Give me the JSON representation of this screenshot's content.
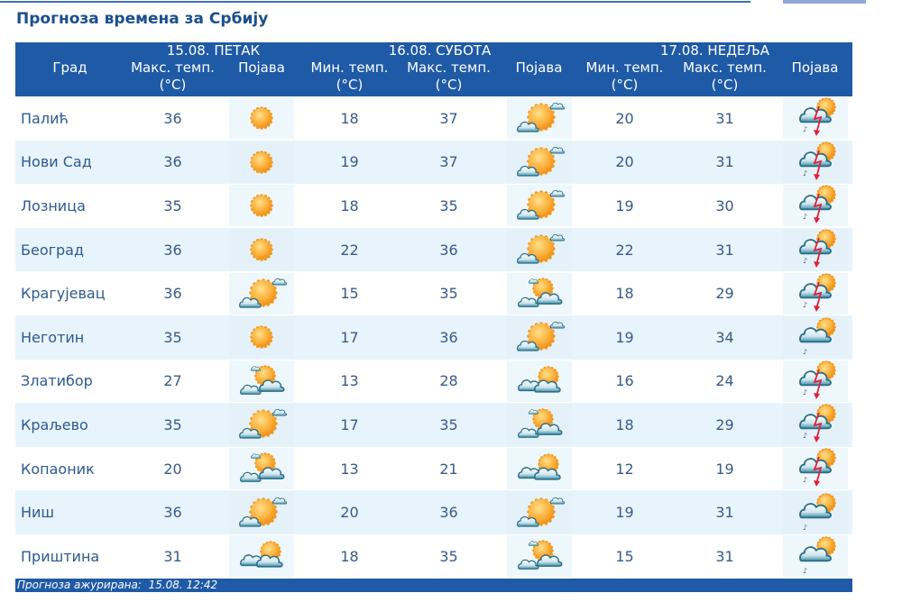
{
  "page": {
    "title": "Прогноза времена за Србију"
  },
  "header": {
    "city_label": "Град",
    "days": [
      {
        "label": "15.08. ПЕТАК"
      },
      {
        "label": "16.08. СУБОТА"
      },
      {
        "label": "17.08. НЕДЕЉА"
      }
    ],
    "max_temp_label": "Макс. темп.",
    "min_temp_label": "Мин. темп.",
    "unit_label": "(°C)",
    "phenomenon_label": "Појава"
  },
  "icons": {
    "sunny": "sunny-icon",
    "mostly_sunny": "sun-with-small-cloud-icon",
    "partly_cloudy": "partly-cloudy-icon",
    "cloudy_sun": "clouds-with-sun-icon",
    "showers": "cloud-sun-rain-icon",
    "thunderstorm": "cloud-sun-thunderstorm-icon"
  },
  "rows": [
    {
      "city": "Палић",
      "d1_max": "36",
      "d1_icon": "sunny",
      "d2_min": "18",
      "d2_max": "37",
      "d2_icon": "mostly_sunny",
      "d3_min": "20",
      "d3_max": "31",
      "d3_icon": "thunderstorm"
    },
    {
      "city": "Нови Сад",
      "d1_max": "36",
      "d1_icon": "sunny",
      "d2_min": "19",
      "d2_max": "37",
      "d2_icon": "mostly_sunny",
      "d3_min": "20",
      "d3_max": "31",
      "d3_icon": "thunderstorm"
    },
    {
      "city": "Лозница",
      "d1_max": "35",
      "d1_icon": "sunny",
      "d2_min": "18",
      "d2_max": "35",
      "d2_icon": "mostly_sunny",
      "d3_min": "19",
      "d3_max": "30",
      "d3_icon": "thunderstorm"
    },
    {
      "city": "Београд",
      "d1_max": "36",
      "d1_icon": "sunny",
      "d2_min": "22",
      "d2_max": "36",
      "d2_icon": "mostly_sunny",
      "d3_min": "22",
      "d3_max": "31",
      "d3_icon": "thunderstorm"
    },
    {
      "city": "Крагујевац",
      "d1_max": "36",
      "d1_icon": "mostly_sunny",
      "d2_min": "15",
      "d2_max": "35",
      "d2_icon": "partly_cloudy",
      "d3_min": "18",
      "d3_max": "29",
      "d3_icon": "thunderstorm"
    },
    {
      "city": "Неготин",
      "d1_max": "35",
      "d1_icon": "sunny",
      "d2_min": "17",
      "d2_max": "36",
      "d2_icon": "mostly_sunny",
      "d3_min": "19",
      "d3_max": "34",
      "d3_icon": "showers"
    },
    {
      "city": "Златибор",
      "d1_max": "27",
      "d1_icon": "partly_cloudy",
      "d2_min": "13",
      "d2_max": "28",
      "d2_icon": "cloudy_sun",
      "d3_min": "16",
      "d3_max": "24",
      "d3_icon": "thunderstorm"
    },
    {
      "city": "Краљево",
      "d1_max": "35",
      "d1_icon": "mostly_sunny",
      "d2_min": "17",
      "d2_max": "35",
      "d2_icon": "partly_cloudy",
      "d3_min": "18",
      "d3_max": "29",
      "d3_icon": "thunderstorm"
    },
    {
      "city": "Копаоник",
      "d1_max": "20",
      "d1_icon": "partly_cloudy",
      "d2_min": "13",
      "d2_max": "21",
      "d2_icon": "cloudy_sun",
      "d3_min": "12",
      "d3_max": "19",
      "d3_icon": "thunderstorm"
    },
    {
      "city": "Ниш",
      "d1_max": "36",
      "d1_icon": "mostly_sunny",
      "d2_min": "20",
      "d2_max": "36",
      "d2_icon": "mostly_sunny",
      "d3_min": "19",
      "d3_max": "31",
      "d3_icon": "showers"
    },
    {
      "city": "Приштина",
      "d1_max": "31",
      "d1_icon": "cloudy_sun",
      "d2_min": "18",
      "d2_max": "35",
      "d2_icon": "partly_cloudy",
      "d3_min": "15",
      "d3_max": "31",
      "d3_icon": "showers"
    }
  ],
  "footer": {
    "updated_label": "Прогноза ажурирана:",
    "updated_value": "15.08. 12:42"
  },
  "colors": {
    "header_bg": "#1f5aa6",
    "title": "#1b4e8e",
    "row_alt": "#e8f4fb",
    "text": "#3a5a85"
  }
}
